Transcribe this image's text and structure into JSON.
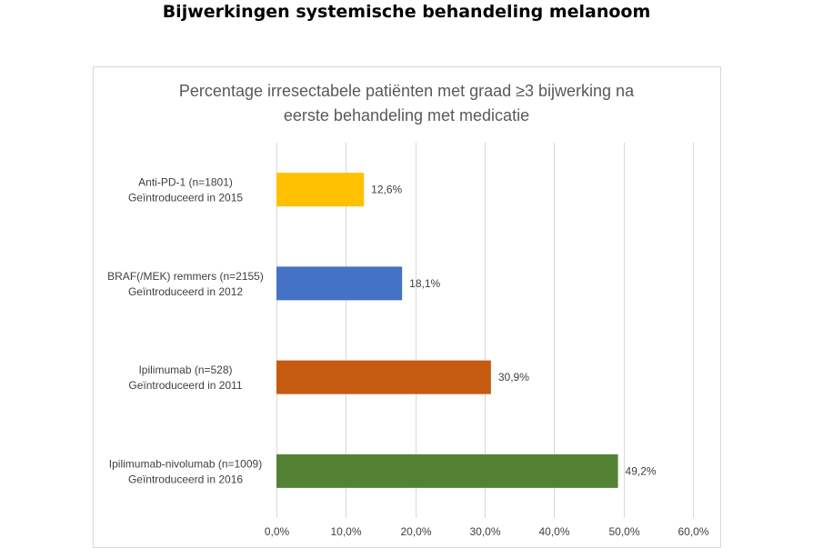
{
  "page_title": "Bijwerkingen systemische behandeling melanoom",
  "chart_data": {
    "type": "bar",
    "orientation": "horizontal",
    "title": [
      "Percentage irresectabele patiënten met graad ≥3 bijwerking na",
      "eerste behandeling met medicatie"
    ],
    "categories": [
      [
        "Anti-PD-1 (n=1801)",
        "Geïntroduceerd in 2015"
      ],
      [
        "BRAF(/MEK) remmers (n=2155)",
        "Geïntroduceerd in 2012"
      ],
      [
        "Ipilimumab (n=528)",
        "Geïntroduceerd in 2011"
      ],
      [
        "Ipilimumab-nivolumab (n=1009)",
        "Geïntroduceerd in 2016"
      ]
    ],
    "values": [
      12.6,
      18.1,
      30.9,
      49.2
    ],
    "data_labels": [
      "12,6%",
      "18,1%",
      "30,9%",
      "49,2%"
    ],
    "colors": [
      "#FFC000",
      "#4472C4",
      "#C55A11",
      "#548235"
    ],
    "xlim": [
      0,
      60
    ],
    "xticks": [
      0,
      10,
      20,
      30,
      40,
      50,
      60
    ],
    "xtick_labels": [
      "0,0%",
      "10,0%",
      "20,0%",
      "30,0%",
      "40,0%",
      "50,0%",
      "60,0%"
    ],
    "grid": true,
    "legend": "none"
  }
}
